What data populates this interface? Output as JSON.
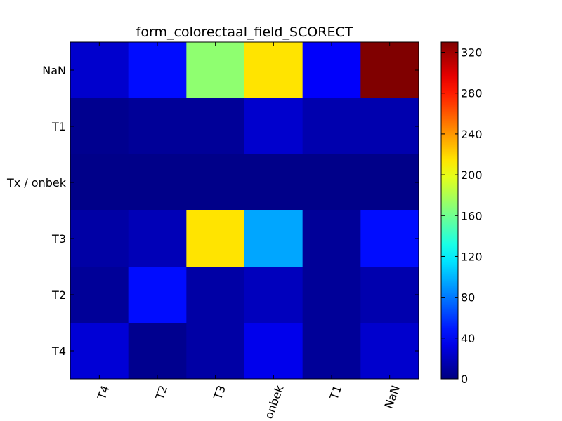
{
  "chart_data": {
    "type": "heatmap",
    "title": "form_colorectaal_field_SCORECT",
    "xlabel": "",
    "ylabel": "",
    "x_categories": [
      "T4",
      "T2",
      "T3",
      "onbek",
      "T1",
      "NaN"
    ],
    "y_categories": [
      "NaN",
      "T1",
      "Tx / onbek",
      "T3",
      "T2",
      "T4"
    ],
    "values": [
      [
        25,
        45,
        170,
        215,
        40,
        330
      ],
      [
        5,
        8,
        8,
        25,
        15,
        15
      ],
      [
        3,
        3,
        3,
        3,
        3,
        3
      ],
      [
        12,
        18,
        215,
        95,
        8,
        45
      ],
      [
        8,
        45,
        12,
        20,
        8,
        15
      ],
      [
        28,
        5,
        12,
        35,
        8,
        25
      ]
    ],
    "colorbar": {
      "min": 0,
      "max": 330,
      "ticks": [
        0,
        40,
        80,
        120,
        160,
        200,
        240,
        280,
        320
      ],
      "colormap": "jet"
    }
  }
}
